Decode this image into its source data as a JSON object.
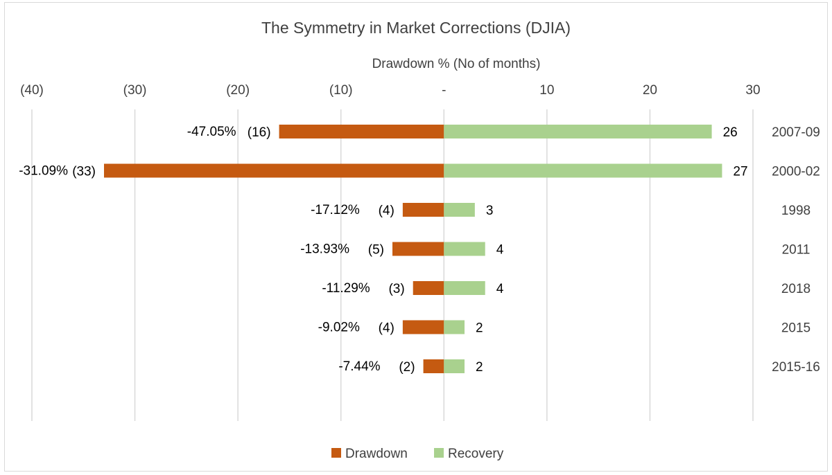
{
  "chart_data": {
    "type": "bar",
    "orientation": "horizontal",
    "title": "The Symmetry in Market Corrections (DJIA)",
    "xlabel": "Drawdown % (No of months)",
    "ylabel": "",
    "xlim": [
      -40,
      30
    ],
    "x_tick_labels": [
      "(40)",
      "(30)",
      "(20)",
      "(10)",
      "-",
      "10",
      "20",
      "30"
    ],
    "categories": [
      "2007-09",
      "2000-02",
      "1998",
      "2011",
      "2018",
      "2015",
      "2015-16"
    ],
    "series": [
      {
        "name": "Drawdown",
        "color": "#c55a11",
        "values": [
          -16,
          -33,
          -4,
          -5,
          -3,
          -4,
          -2
        ],
        "data_labels": [
          "(16)",
          "(33)",
          "(4)",
          "(5)",
          "(3)",
          "(4)",
          "(2)"
        ]
      },
      {
        "name": "Recovery",
        "color": "#a9d18e",
        "values": [
          26,
          27,
          3,
          4,
          4,
          2,
          2
        ],
        "data_labels": [
          "26",
          "27",
          "3",
          "4",
          "4",
          "2",
          "2"
        ]
      }
    ],
    "annotations": [
      "-47.05%",
      "-31.09%",
      "-17.12%",
      "-13.93%",
      "-11.29%",
      "-9.02%",
      "-7.44%"
    ],
    "grid": true,
    "legend_position": "bottom"
  }
}
